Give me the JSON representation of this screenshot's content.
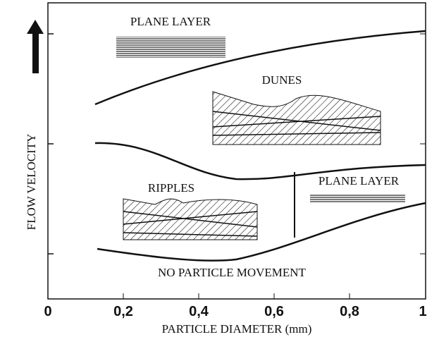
{
  "header": {
    "y_axis_label": "FLOW VELOCITY",
    "x_axis_label": "PARTICLE DIAMETER (mm)"
  },
  "x_ticks": [
    "0",
    "0,2",
    "0,4",
    "0,6",
    "0,8",
    "1"
  ],
  "regions": [
    {
      "label": "PLANE LAYER"
    },
    {
      "label": "DUNES"
    },
    {
      "label": "RIPPLES"
    },
    {
      "label": "PLANE LAYER"
    },
    {
      "label": "NO PARTICLE MOVEMENT"
    }
  ]
}
